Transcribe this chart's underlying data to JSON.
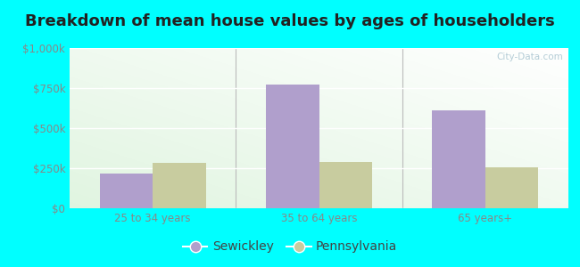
{
  "title": "Breakdown of mean house values by ages of householders",
  "categories": [
    "25 to 34 years",
    "35 to 64 years",
    "65 years+"
  ],
  "sewickley_values": [
    215000,
    775000,
    610000
  ],
  "pennsylvania_values": [
    285000,
    290000,
    255000
  ],
  "sewickley_color": "#b09fcc",
  "pennsylvania_color": "#c8cc9f",
  "background_color": "#00ffff",
  "yticks": [
    0,
    250000,
    500000,
    750000,
    1000000
  ],
  "ytick_labels": [
    "$0",
    "$250k",
    "$500k",
    "$750k",
    "$1,000k"
  ],
  "ylim": [
    0,
    1000000
  ],
  "bar_width": 0.32,
  "legend_labels": [
    "Sewickley",
    "Pennsylvania"
  ],
  "watermark": "City-Data.com",
  "title_fontsize": 13,
  "tick_fontsize": 8.5,
  "legend_fontsize": 10
}
